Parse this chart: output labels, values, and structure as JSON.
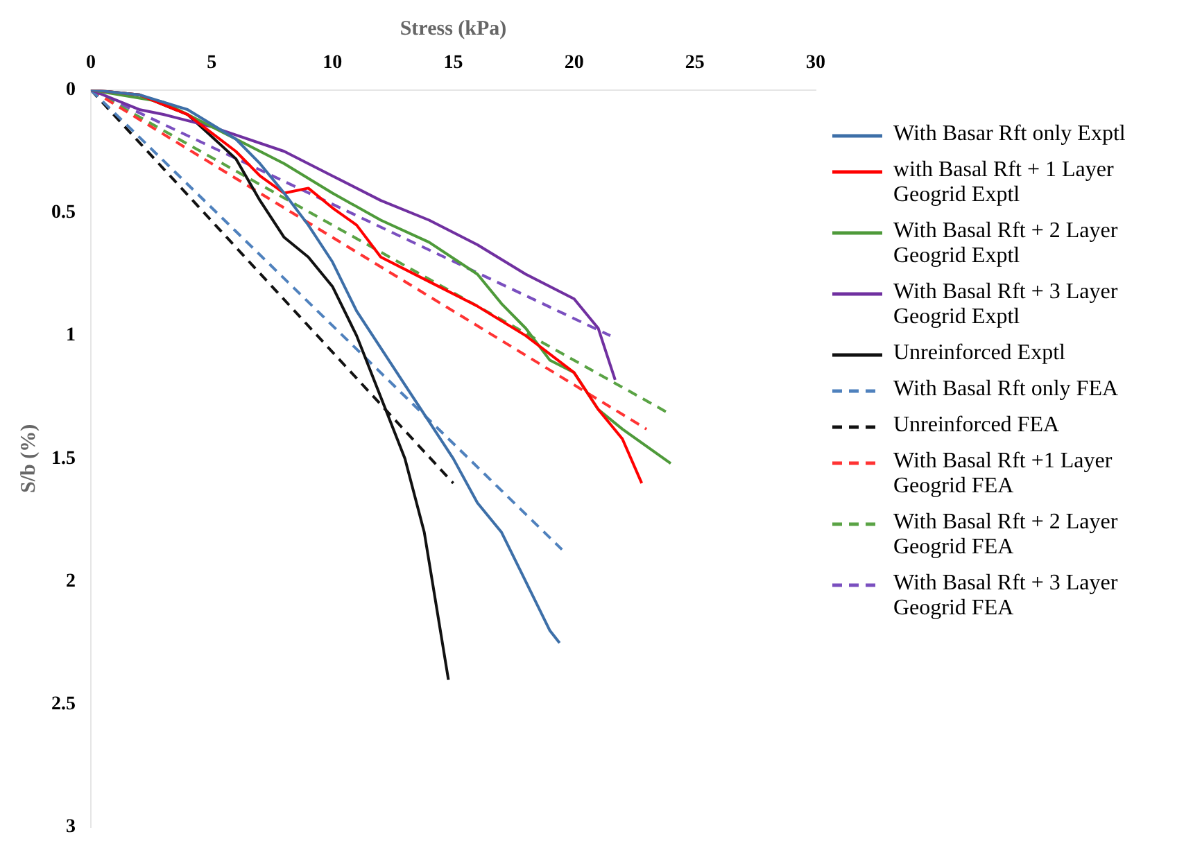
{
  "chart_data": {
    "type": "line",
    "xlabel": "Stress (kPa)",
    "ylabel": "S/b (%)",
    "xlim": [
      0,
      30
    ],
    "xticks": [
      0,
      5,
      10,
      15,
      20,
      25,
      30
    ],
    "ylim": [
      3,
      0
    ],
    "yticks": [
      0,
      0.5,
      1,
      1.5,
      2,
      2.5,
      3
    ],
    "grid": false,
    "legend": "right",
    "marker": "none",
    "series": [
      {
        "name": "With Basar Rft only Exptl",
        "color": "#3d6fa8",
        "line_style": "solid",
        "x": [
          0,
          2,
          4,
          6,
          7,
          8,
          9,
          10,
          11,
          12,
          13,
          14,
          15,
          16,
          17,
          18,
          19,
          19.4
        ],
        "values": [
          0,
          0.02,
          0.08,
          0.2,
          0.3,
          0.42,
          0.55,
          0.7,
          0.9,
          1.05,
          1.2,
          1.35,
          1.5,
          1.68,
          1.8,
          2.0,
          2.2,
          2.25
        ]
      },
      {
        "name": "with Basal Rft + 1 Layer Geogrid Exptl",
        "color": "#ff0000",
        "line_style": "solid",
        "x": [
          0,
          2,
          4,
          6,
          7,
          8,
          9,
          10,
          11,
          12,
          14,
          16,
          18,
          20,
          21,
          22,
          22.8
        ],
        "values": [
          0,
          0.02,
          0.1,
          0.25,
          0.35,
          0.42,
          0.4,
          0.48,
          0.55,
          0.68,
          0.78,
          0.88,
          1.0,
          1.15,
          1.3,
          1.42,
          1.6
        ]
      },
      {
        "name": "With Basal Rft + 2 Layer Geogrid Exptl",
        "color": "#4e9a3a",
        "line_style": "solid",
        "x": [
          0,
          3,
          5,
          8,
          10,
          12,
          14,
          16,
          17,
          18,
          19,
          20,
          21,
          22,
          24
        ],
        "values": [
          0,
          0.05,
          0.15,
          0.3,
          0.42,
          0.53,
          0.62,
          0.75,
          0.87,
          0.97,
          1.1,
          1.15,
          1.3,
          1.38,
          1.52
        ]
      },
      {
        "name": "With Basal Rft + 3 Layer Geogrid Exptl",
        "color": "#7030a0",
        "line_style": "solid",
        "x": [
          0,
          2,
          3,
          5,
          8,
          10,
          12,
          14,
          16,
          18,
          20,
          21,
          21.7
        ],
        "values": [
          0,
          0.08,
          0.1,
          0.15,
          0.25,
          0.35,
          0.45,
          0.53,
          0.63,
          0.75,
          0.85,
          0.97,
          1.18
        ]
      },
      {
        "name": "Unreinforced Exptl",
        "color": "#111111",
        "line_style": "solid",
        "x": [
          0,
          2,
          4,
          6,
          7,
          8,
          9,
          10,
          11,
          12,
          13,
          13.8,
          14.3,
          14.8
        ],
        "values": [
          0,
          0.02,
          0.1,
          0.28,
          0.45,
          0.6,
          0.68,
          0.8,
          1.0,
          1.25,
          1.5,
          1.8,
          2.1,
          2.4
        ]
      },
      {
        "name": "With Basal Rft only FEA",
        "color": "#4f81bd",
        "line_style": "dashed",
        "x": [
          0,
          19.5
        ],
        "values": [
          0,
          1.87
        ]
      },
      {
        "name": "Unreinforced FEA",
        "color": "#111111",
        "line_style": "dashed",
        "x": [
          0,
          15
        ],
        "values": [
          0,
          1.6
        ]
      },
      {
        "name": "With Basal Rft +1 Layer Geogrid FEA",
        "color": "#ff3333",
        "line_style": "dashed",
        "x": [
          0,
          23
        ],
        "values": [
          0,
          1.38
        ]
      },
      {
        "name": "With Basal Rft + 2 Layer Geogrid FEA",
        "color": "#5aa345",
        "line_style": "dashed",
        "x": [
          0,
          24
        ],
        "values": [
          0,
          1.32
        ]
      },
      {
        "name": "With Basal Rft + 3 Layer Geogrid FEA",
        "color": "#7a4fbf",
        "line_style": "dashed",
        "x": [
          0,
          21.5
        ],
        "values": [
          0,
          1.0
        ]
      }
    ]
  }
}
